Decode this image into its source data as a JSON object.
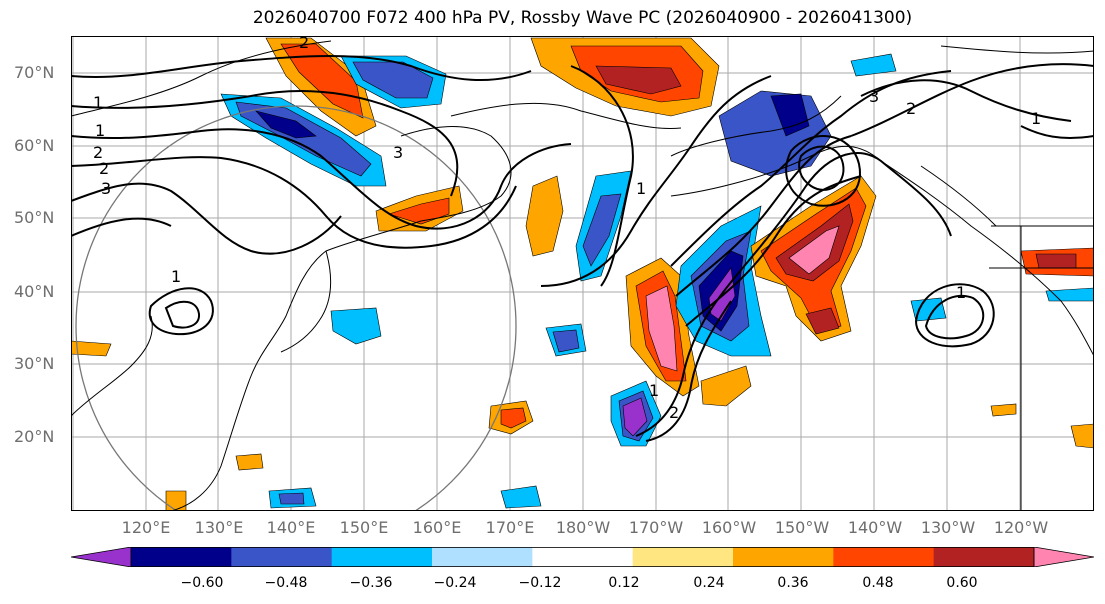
{
  "title": "2026040700 F072 400 hPa PV, Rossby Wave PC (2026040900 - 2026041300)",
  "lat_labels": [
    "70°N",
    "60°N",
    "50°N",
    "40°N",
    "30°N",
    "20°N"
  ],
  "lon_labels": [
    "120°E",
    "130°E",
    "140°E",
    "150°E",
    "160°E",
    "170°E",
    "180°W",
    "170°W",
    "160°W",
    "150°W",
    "140°W",
    "130°W",
    "120°W"
  ],
  "colorbar": {
    "ticks": [
      "−0.60",
      "−0.48",
      "−0.36",
      "−0.24",
      "−0.12",
      "0.12",
      "0.24",
      "0.36",
      "0.48",
      "0.60"
    ],
    "colors": [
      "#9932cc",
      "#00008b",
      "#3a55c8",
      "#00bfff",
      "#b0e0ff",
      "#ffffff",
      "#ffe680",
      "#ffa500",
      "#ff4500",
      "#b22222",
      "#ff85b0"
    ],
    "extend": "both"
  },
  "contour_labels": [
    "1",
    "1",
    "2",
    "2",
    "3",
    "1",
    "2",
    "3",
    "1",
    "1",
    "2",
    "1",
    "2",
    "3",
    "1"
  ],
  "range_ring": "circle"
}
